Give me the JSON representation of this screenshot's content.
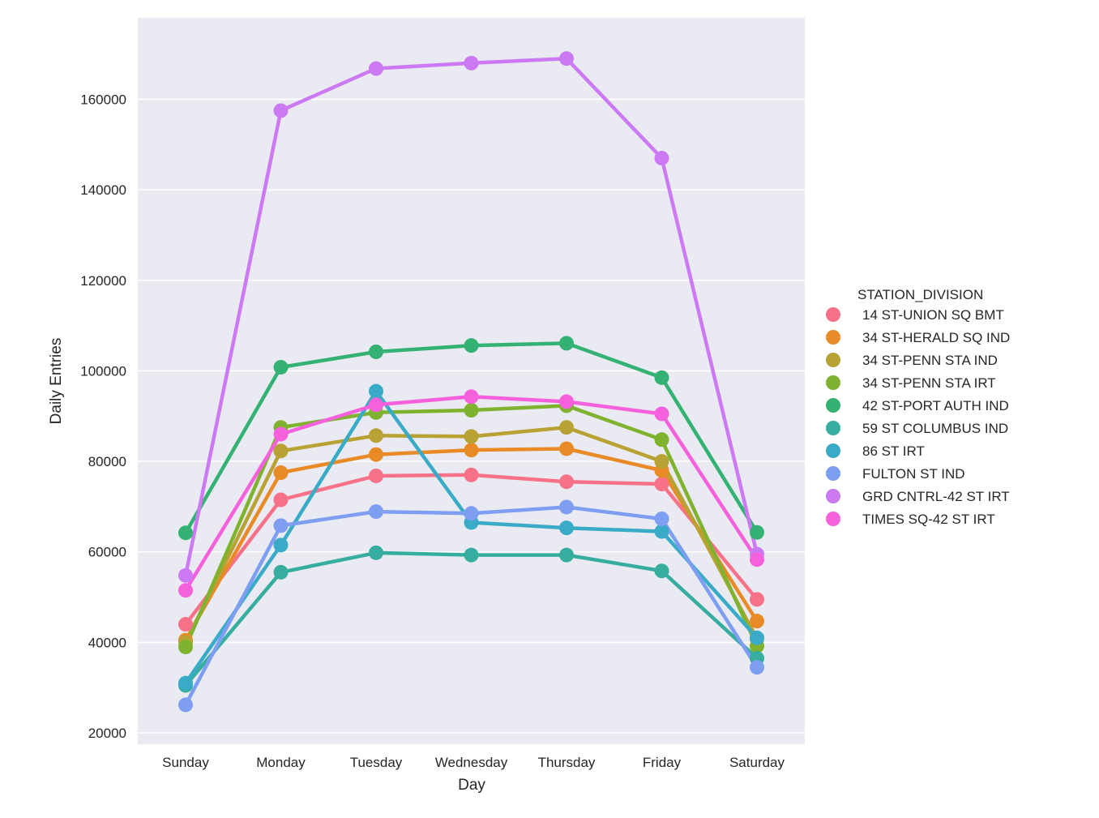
{
  "chart_data": {
    "type": "line",
    "xlabel": "Day",
    "ylabel": "Daily Entries",
    "categories": [
      "Sunday",
      "Monday",
      "Tuesday",
      "Wednesday",
      "Thursday",
      "Friday",
      "Saturday"
    ],
    "ylim": [
      17500,
      178000
    ],
    "yticks": [
      20000,
      40000,
      60000,
      80000,
      100000,
      120000,
      140000,
      160000
    ],
    "grid": true,
    "legend_position": "right",
    "legend_title": "STATION_DIVISION",
    "series": [
      {
        "name": "14 ST-UNION SQ BMT",
        "color": "#f77189",
        "values": [
          44000,
          71500,
          76800,
          77000,
          75500,
          75000,
          49500
        ]
      },
      {
        "name": "34 ST-HERALD SQ IND",
        "color": "#e88b27",
        "values": [
          40500,
          77500,
          81500,
          82500,
          82800,
          78000,
          44700
        ]
      },
      {
        "name": "34 ST-PENN STA IND",
        "color": "#b8a233",
        "values": [
          40000,
          82300,
          85700,
          85500,
          87500,
          80000,
          40800
        ]
      },
      {
        "name": "34 ST-PENN STA IRT",
        "color": "#7fb32f",
        "values": [
          39000,
          87500,
          90800,
          91300,
          92300,
          84800,
          39200
        ]
      },
      {
        "name": "42 ST-PORT AUTH IND",
        "color": "#33b274",
        "values": [
          64200,
          100800,
          104200,
          105600,
          106100,
          98500,
          64300
        ]
      },
      {
        "name": "59 ST COLUMBUS IND",
        "color": "#37ad9f",
        "values": [
          30500,
          55500,
          59800,
          59300,
          59300,
          55800,
          36500
        ]
      },
      {
        "name": "86 ST IRT",
        "color": "#3aabc7",
        "values": [
          31000,
          61500,
          95500,
          66500,
          65300,
          64500,
          41000
        ]
      },
      {
        "name": "FULTON ST IND",
        "color": "#7e9ef2",
        "values": [
          26200,
          65800,
          68900,
          68500,
          69900,
          67300,
          34500
        ]
      },
      {
        "name": "GRD CNTRL-42 ST IRT",
        "color": "#cc79f4",
        "values": [
          54800,
          157500,
          166800,
          168000,
          169000,
          147000,
          59500
        ]
      },
      {
        "name": "TIMES SQ-42 ST IRT",
        "color": "#f561dd",
        "values": [
          51500,
          86000,
          92500,
          94300,
          93200,
          90500,
          58300
        ]
      }
    ]
  }
}
